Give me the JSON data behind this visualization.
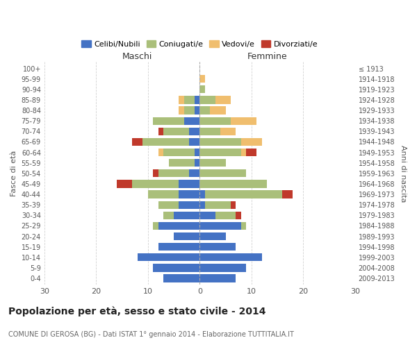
{
  "age_groups": [
    "0-4",
    "5-9",
    "10-14",
    "15-19",
    "20-24",
    "25-29",
    "30-34",
    "35-39",
    "40-44",
    "45-49",
    "50-54",
    "55-59",
    "60-64",
    "65-69",
    "70-74",
    "75-79",
    "80-84",
    "85-89",
    "90-94",
    "95-99",
    "100+"
  ],
  "birth_years": [
    "2009-2013",
    "2004-2008",
    "1999-2003",
    "1994-1998",
    "1989-1993",
    "1984-1988",
    "1979-1983",
    "1974-1978",
    "1969-1973",
    "1964-1968",
    "1959-1963",
    "1954-1958",
    "1949-1953",
    "1944-1948",
    "1939-1943",
    "1934-1938",
    "1929-1933",
    "1924-1928",
    "1919-1923",
    "1914-1918",
    "≤ 1913"
  ],
  "colors": {
    "celibe": "#4472C4",
    "coniugato": "#AABF7A",
    "vedovo": "#F0BE6E",
    "divorziato": "#C0392B"
  },
  "maschi": {
    "celibe": [
      7,
      9,
      12,
      8,
      5,
      8,
      5,
      4,
      4,
      4,
      2,
      1,
      1,
      2,
      2,
      3,
      1,
      1,
      0,
      0,
      0
    ],
    "coniugato": [
      0,
      0,
      0,
      0,
      0,
      1,
      2,
      4,
      6,
      9,
      6,
      5,
      6,
      9,
      5,
      6,
      2,
      2,
      0,
      0,
      0
    ],
    "vedovo": [
      0,
      0,
      0,
      0,
      0,
      0,
      0,
      0,
      0,
      0,
      0,
      0,
      1,
      0,
      0,
      0,
      1,
      1,
      0,
      0,
      0
    ],
    "divorziato": [
      0,
      0,
      0,
      0,
      0,
      0,
      0,
      0,
      0,
      3,
      1,
      0,
      0,
      2,
      1,
      0,
      0,
      0,
      0,
      0,
      0
    ]
  },
  "femmine": {
    "nubile": [
      7,
      9,
      12,
      7,
      5,
      8,
      3,
      1,
      1,
      0,
      0,
      0,
      0,
      0,
      0,
      0,
      0,
      0,
      0,
      0,
      0
    ],
    "coniugata": [
      0,
      0,
      0,
      0,
      0,
      1,
      4,
      5,
      15,
      13,
      9,
      5,
      8,
      8,
      4,
      6,
      2,
      3,
      1,
      0,
      0
    ],
    "vedova": [
      0,
      0,
      0,
      0,
      0,
      0,
      0,
      0,
      0,
      0,
      0,
      0,
      1,
      4,
      3,
      5,
      3,
      3,
      0,
      1,
      0
    ],
    "divorziata": [
      0,
      0,
      0,
      0,
      0,
      0,
      1,
      1,
      2,
      0,
      0,
      0,
      2,
      0,
      0,
      0,
      0,
      0,
      0,
      0,
      0
    ]
  },
  "xlim": [
    -30,
    30
  ],
  "xticks": [
    -30,
    -20,
    -10,
    0,
    10,
    20,
    30
  ],
  "xticklabels": [
    "30",
    "20",
    "10",
    "0",
    "10",
    "20",
    "30"
  ],
  "title": "Popolazione per età, sesso e stato civile - 2014",
  "subtitle": "COMUNE DI GEROSA (BG) - Dati ISTAT 1° gennaio 2014 - Elaborazione TUTTITALIA.IT",
  "ylabel_left": "Fasce di età",
  "ylabel_right": "Anni di nascita",
  "legend_labels": [
    "Celibi/Nubili",
    "Coniugati/e",
    "Vedovi/e",
    "Divorziati/e"
  ],
  "legend_colors": [
    "#4472C4",
    "#AABF7A",
    "#F0BE6E",
    "#C0392B"
  ],
  "background_color": "#ffffff",
  "grid_color": "#cccccc",
  "bar_height": 0.75
}
